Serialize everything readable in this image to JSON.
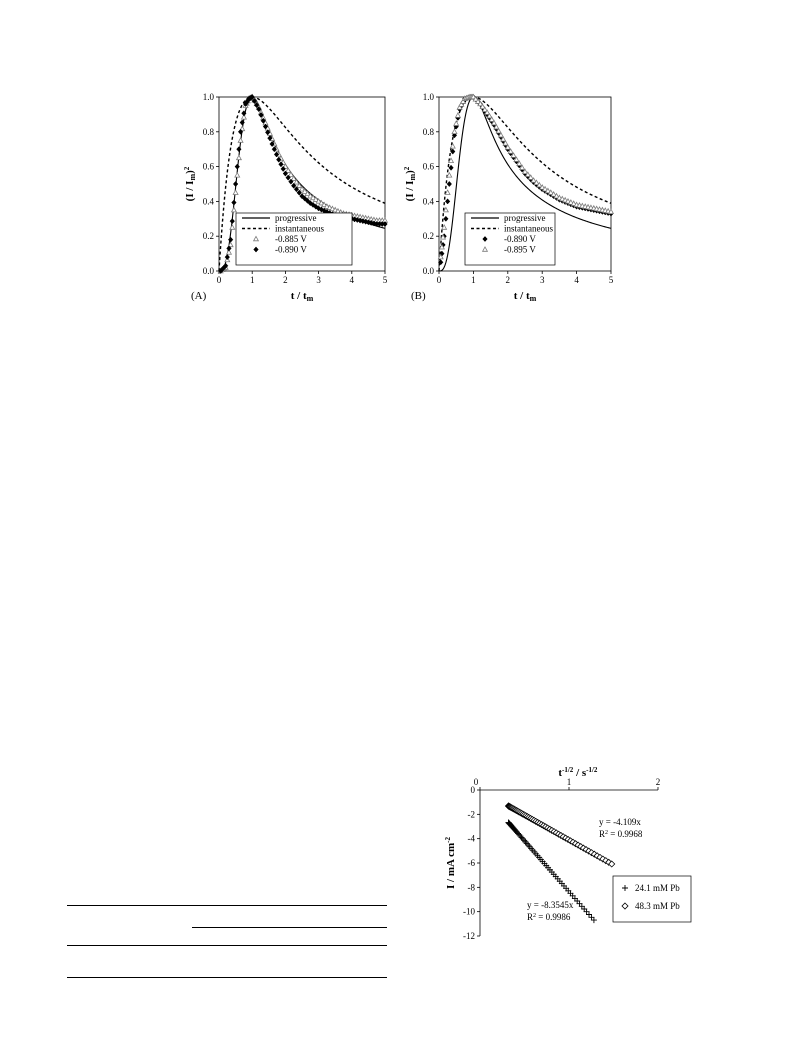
{
  "chart_data": [
    {
      "type": "line",
      "panel": "(A)",
      "xlabel": "t / t",
      "xlabel_sub": "m",
      "ylabel_base": "(I / I",
      "ylabel_sub": "m",
      "ylabel_end": ")",
      "ylabel_sup": "2",
      "xlim": [
        0,
        5
      ],
      "ylim": [
        0,
        1.0
      ],
      "x_ticks": [
        "0",
        "1",
        "2",
        "3",
        "4",
        "5"
      ],
      "y_ticks": [
        "0.0",
        "0.2",
        "0.4",
        "0.6",
        "0.8",
        "1.0"
      ],
      "legend_position": "bottom-center",
      "series": [
        {
          "name": "progressive",
          "style": "solid-line",
          "model": "progressive"
        },
        {
          "name": "instantaneous",
          "style": "dashed-line",
          "model": "instantaneous"
        },
        {
          "name": "-0.885 V",
          "style": "open-triangle",
          "marker": "triangle",
          "x": [
            0.05,
            0.2,
            0.35,
            0.5,
            0.65,
            0.8,
            0.9,
            1.0,
            1.2,
            1.4,
            1.6,
            1.8,
            2.0,
            2.25,
            2.5,
            2.75,
            3.0,
            3.25,
            3.5,
            3.75,
            4.0,
            4.25,
            4.5,
            4.75,
            5.0
          ],
          "y": [
            0.0,
            0.02,
            0.15,
            0.45,
            0.75,
            0.95,
            0.99,
            1.0,
            0.94,
            0.85,
            0.76,
            0.67,
            0.6,
            0.53,
            0.47,
            0.43,
            0.4,
            0.37,
            0.35,
            0.33,
            0.32,
            0.31,
            0.3,
            0.29,
            0.29
          ]
        },
        {
          "name": "-0.890 V",
          "style": "filled-diamond",
          "marker": "diamond",
          "x": [
            0.05,
            0.2,
            0.35,
            0.5,
            0.65,
            0.8,
            0.9,
            1.0,
            1.2,
            1.4,
            1.6,
            1.8,
            2.0,
            2.25,
            2.5,
            2.75,
            3.0,
            3.25,
            3.5,
            3.75,
            4.0,
            4.25,
            4.5,
            4.75,
            5.0
          ],
          "y": [
            0.0,
            0.03,
            0.18,
            0.5,
            0.8,
            0.96,
            0.99,
            1.0,
            0.93,
            0.83,
            0.73,
            0.64,
            0.56,
            0.49,
            0.43,
            0.39,
            0.36,
            0.34,
            0.32,
            0.31,
            0.3,
            0.29,
            0.28,
            0.27,
            0.27
          ]
        }
      ]
    },
    {
      "type": "line",
      "panel": "(B)",
      "xlabel": "t / t",
      "xlabel_sub": "m",
      "ylabel_base": "(I / I",
      "ylabel_sub": "m",
      "ylabel_end": ")",
      "ylabel_sup": "2",
      "xlim": [
        0,
        5
      ],
      "ylim": [
        0,
        1.0
      ],
      "x_ticks": [
        "0",
        "1",
        "2",
        "3",
        "4",
        "5"
      ],
      "y_ticks": [
        "0.0",
        "0.2",
        "0.4",
        "0.6",
        "0.8",
        "1.0"
      ],
      "legend_position": "bottom-center",
      "series": [
        {
          "name": "progressive",
          "style": "solid-line",
          "model": "progressive"
        },
        {
          "name": "instantaneous",
          "style": "dashed-line",
          "model": "instantaneous"
        },
        {
          "name": "-0.890 V",
          "style": "filled-diamond",
          "marker": "diamond",
          "x": [
            0.05,
            0.15,
            0.3,
            0.45,
            0.6,
            0.75,
            0.9,
            1.0,
            1.2,
            1.4,
            1.6,
            1.8,
            2.0,
            2.25,
            2.5,
            2.75,
            3.0,
            3.25,
            3.5,
            3.75,
            4.0,
            4.25,
            4.5,
            4.75,
            5.0
          ],
          "y": [
            0.05,
            0.2,
            0.5,
            0.78,
            0.93,
            0.99,
            1.0,
            1.0,
            0.96,
            0.9,
            0.84,
            0.77,
            0.7,
            0.63,
            0.56,
            0.51,
            0.47,
            0.44,
            0.41,
            0.39,
            0.37,
            0.36,
            0.35,
            0.34,
            0.33
          ]
        },
        {
          "name": "-0.895 V",
          "style": "open-triangle",
          "marker": "triangle",
          "x": [
            0.05,
            0.15,
            0.3,
            0.45,
            0.6,
            0.75,
            0.9,
            1.0,
            1.2,
            1.4,
            1.6,
            1.8,
            2.0,
            2.25,
            2.5,
            2.75,
            3.0,
            3.25,
            3.5,
            3.75,
            4.0,
            4.25,
            4.5,
            4.75,
            5.0
          ],
          "y": [
            0.08,
            0.25,
            0.55,
            0.8,
            0.94,
            0.99,
            1.0,
            1.0,
            0.96,
            0.91,
            0.85,
            0.78,
            0.71,
            0.64,
            0.57,
            0.52,
            0.48,
            0.45,
            0.42,
            0.4,
            0.38,
            0.37,
            0.36,
            0.35,
            0.34
          ]
        }
      ]
    },
    {
      "type": "scatter",
      "xlabel_base": "t",
      "xlabel_sup1": "-1/2",
      "xlabel_mid": " / s",
      "xlabel_sup2": "-1/2",
      "ylabel_base": "I / mA cm",
      "ylabel_sup": "-2",
      "xlim": [
        0,
        2
      ],
      "ylim": [
        -12,
        0
      ],
      "x_ticks": [
        "0",
        "1",
        "2"
      ],
      "y_ticks": [
        "0",
        "-2",
        "-4",
        "-6",
        "-8",
        "-10",
        "-12"
      ],
      "legend_position": "bottom-right",
      "series": [
        {
          "name": "24.1 mM Pb",
          "marker": "plus",
          "slope": -8.3545,
          "x_range": [
            0.32,
            1.28
          ],
          "equation": "y = -8.3545x",
          "r2_label": "R",
          "r2_sup": "2",
          "r2_value": " = 0.9986"
        },
        {
          "name": "48.3 mM Pb",
          "marker": "diamond-open",
          "slope": -4.109,
          "x_range": [
            0.32,
            1.48
          ],
          "equation": "y = -4.109x",
          "r2_label": "R",
          "r2_sup": "2",
          "r2_value": " = 0.9968"
        }
      ]
    }
  ]
}
